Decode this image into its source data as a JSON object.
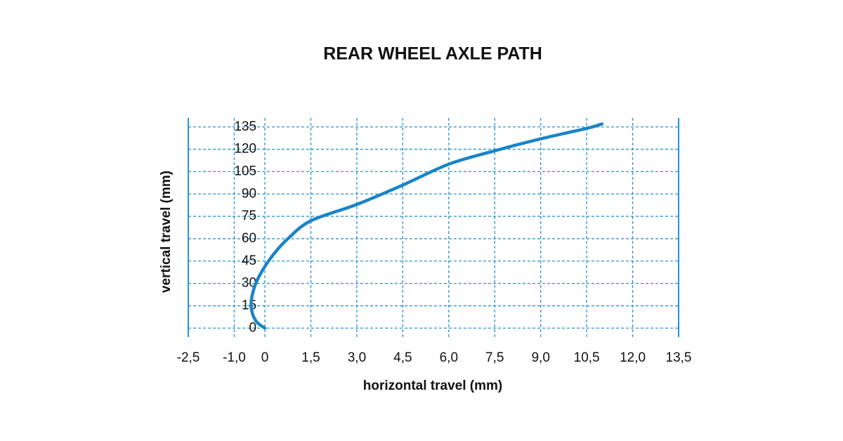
{
  "chart_data": {
    "type": "line",
    "title": "REAR WHEEL AXLE PATH",
    "x_label": "horizontal travel (mm)",
    "y_label": "vertical travel (mm)",
    "series": [
      {
        "name": "axle path",
        "color": "#1a84c7",
        "x": [
          0,
          -0.3,
          -0.45,
          -0.35,
          -0.1,
          0.3,
          0.75,
          1.5,
          3.0,
          4.5,
          6.0,
          7.5,
          9.0,
          10.5,
          11.0
        ],
        "values": [
          0,
          5,
          15,
          27,
          38,
          50,
          60,
          72,
          83,
          96,
          110,
          119,
          127,
          134,
          137
        ]
      }
    ],
    "xlim": [
      -2.5,
      13.5
    ],
    "xticks": [
      {
        "value": -2.5,
        "label": "-2,5"
      },
      {
        "value": -1.0,
        "label": "-1,0"
      },
      0,
      {
        "value": 1.5,
        "label": "1,5"
      },
      {
        "value": 3.0,
        "label": "3,0"
      },
      {
        "value": 4.5,
        "label": "4,5"
      },
      {
        "value": 6.0,
        "label": "6,0"
      },
      {
        "value": 7.5,
        "label": "7,5"
      },
      {
        "value": 9.0,
        "label": "9,0"
      },
      {
        "value": 10.5,
        "label": "10,5"
      },
      {
        "value": 12.0,
        "label": "12,0"
      },
      {
        "value": 13.5,
        "label": "13,5"
      }
    ],
    "ylim": [
      -6,
      141
    ],
    "yticks": [
      0,
      15,
      30,
      45,
      60,
      75,
      90,
      105,
      120,
      135
    ],
    "grid": true,
    "grid_color": "#2a93d0"
  }
}
